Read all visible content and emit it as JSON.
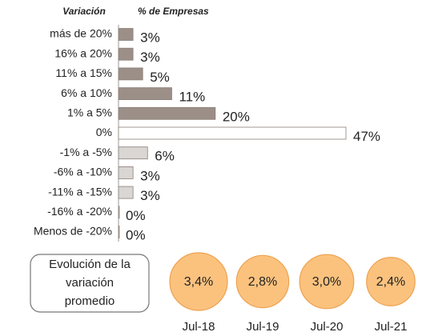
{
  "chart_data": [
    {
      "type": "hbar",
      "category_label": "Variación",
      "value_label": "% de Empresas",
      "categories": [
        "más de 20%",
        "16% a 20%",
        "11% a 15%",
        "6% a 10%",
        "1% a 5%",
        "0%",
        "-1% a -5%",
        "-6% a -10%",
        "-11% a -15%",
        "-16% a -20%",
        "Menos de -20%"
      ],
      "values": [
        3,
        3,
        5,
        11,
        20,
        47,
        6,
        3,
        3,
        0,
        0
      ],
      "value_labels": [
        "3%",
        "3%",
        "5%",
        "11%",
        "20%",
        "47%",
        "6%",
        "3%",
        "3%",
        "0%",
        "0%"
      ],
      "colors": [
        "#9c8f88",
        "#9c8f88",
        "#9c8f88",
        "#9c8f88",
        "#9c8f88",
        "#ffffff",
        "#d9d6d3",
        "#d9d6d3",
        "#d9d6d3",
        "#d9d6d3",
        "#d9d6d3"
      ]
    },
    {
      "type": "circles",
      "title_lines": [
        "Evolución de la",
        "variación",
        "promedio"
      ],
      "categories": [
        "Jul-18",
        "Jul-19",
        "Jul-20",
        "Jul-21"
      ],
      "values": [
        3.4,
        2.8,
        3.0,
        2.4
      ],
      "value_labels": [
        "3,4%",
        "2,8%",
        "3,0%",
        "2,4%"
      ],
      "color": "#fbc27e"
    }
  ]
}
